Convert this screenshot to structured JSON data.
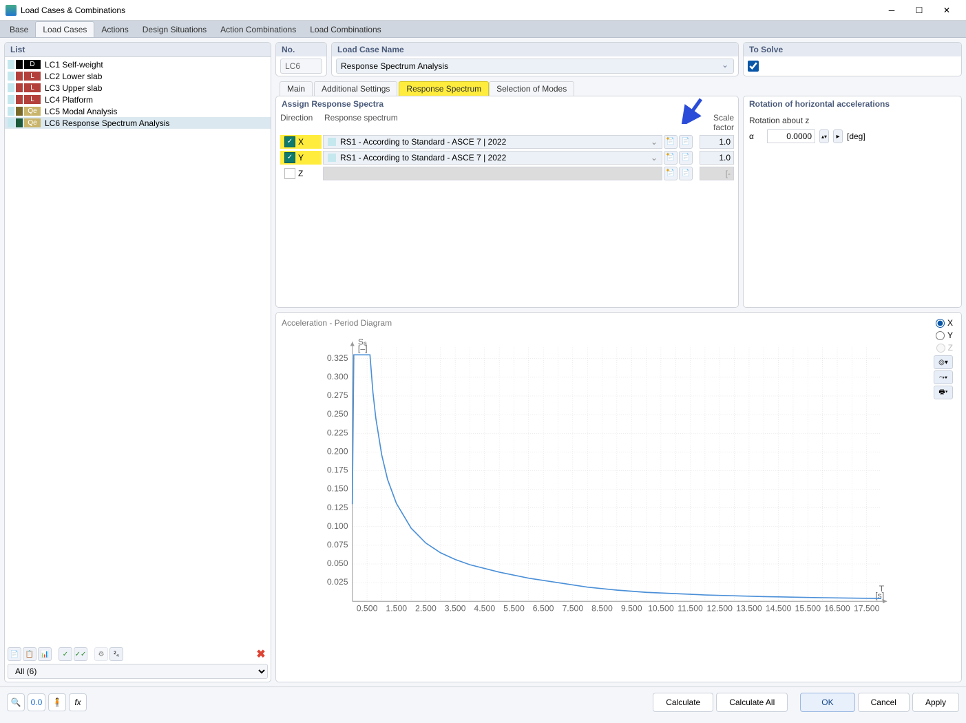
{
  "window": {
    "title": "Load Cases & Combinations"
  },
  "toptabs": [
    "Base",
    "Load Cases",
    "Actions",
    "Design Situations",
    "Action Combinations",
    "Load Combinations"
  ],
  "toptab_active": 1,
  "list": {
    "header": "List",
    "items": [
      {
        "badge2": "#000000",
        "badge3_bg": "#000000",
        "badge3": "D",
        "label": "LC1 Self-weight"
      },
      {
        "badge2": "#b3403a",
        "badge3_bg": "#b3403a",
        "badge3": "L",
        "label": "LC2 Lower slab"
      },
      {
        "badge2": "#b3403a",
        "badge3_bg": "#b3403a",
        "badge3": "L",
        "label": "LC3 Upper slab"
      },
      {
        "badge2": "#b3403a",
        "badge3_bg": "#b3403a",
        "badge3": "L",
        "label": "LC4 Platform"
      },
      {
        "badge2": "#7a6a2a",
        "badge3_bg": "#c8b46a",
        "badge3": "Qe",
        "label": "LC5 Modal Analysis"
      },
      {
        "badge2": "#1a5a3a",
        "badge3_bg": "#c8b46a",
        "badge3": "Qe",
        "label": "LC6 Response Spectrum Analysis",
        "selected": true
      }
    ],
    "filter": "All (6)"
  },
  "fields": {
    "no_label": "No.",
    "no_value": "LC6",
    "name_label": "Load Case Name",
    "name_value": "Response Spectrum Analysis",
    "solve_label": "To Solve",
    "solve_checked": true
  },
  "subtabs": [
    "Main",
    "Additional Settings",
    "Response Spectrum",
    "Selection of Modes"
  ],
  "subtab_active": 2,
  "assign": {
    "title": "Assign Response Spectra",
    "cols": {
      "dir": "Direction",
      "spec": "Response spectrum",
      "scale": "Scale factor"
    },
    "rows": [
      {
        "checked": true,
        "dir": "X",
        "highlight": true,
        "spectrum": "RS1 - According to Standard - ASCE 7 | 2022",
        "scale": "1.0"
      },
      {
        "checked": true,
        "dir": "Y",
        "highlight": true,
        "spectrum": "RS1 - According to Standard - ASCE 7 | 2022",
        "scale": "1.0"
      },
      {
        "checked": false,
        "dir": "Z",
        "highlight": false,
        "spectrum": "",
        "scale": "[-"
      }
    ]
  },
  "rotation": {
    "title": "Rotation of horizontal accelerations",
    "label": "Rotation about z",
    "alpha": "α",
    "value": "0.0000",
    "unit": "[deg]"
  },
  "chart": {
    "title": "Acceleration - Period Diagram",
    "y_label": "Sₐ",
    "y_unit": "[–]",
    "x_label": "T",
    "x_unit": "[s]",
    "x_ticks": [
      "0.500",
      "1.500",
      "2.500",
      "3.500",
      "4.500",
      "5.500",
      "6.500",
      "7.500",
      "8.500",
      "9.500",
      "10.500",
      "11.500",
      "12.500",
      "13.500",
      "14.500",
      "15.500",
      "16.500",
      "17.500"
    ],
    "y_ticks": [
      "0.025",
      "0.050",
      "0.075",
      "0.100",
      "0.125",
      "0.150",
      "0.175",
      "0.200",
      "0.225",
      "0.250",
      "0.275",
      "0.300",
      "0.325"
    ],
    "x_min": 0,
    "x_max": 18,
    "y_min": 0,
    "y_max": 0.34,
    "line_color": "#4a8fd8",
    "grid_color": "#d8d8d8",
    "axis_color": "#999999",
    "curve": [
      [
        0.0,
        0.13
      ],
      [
        0.05,
        0.33
      ],
      [
        0.11,
        0.33
      ],
      [
        0.6,
        0.33
      ],
      [
        0.7,
        0.28
      ],
      [
        0.8,
        0.245
      ],
      [
        1.0,
        0.196
      ],
      [
        1.2,
        0.163
      ],
      [
        1.5,
        0.131
      ],
      [
        2.0,
        0.098
      ],
      [
        2.5,
        0.078
      ],
      [
        3.0,
        0.065
      ],
      [
        3.5,
        0.056
      ],
      [
        4.0,
        0.049
      ],
      [
        5.0,
        0.039
      ],
      [
        6.0,
        0.031
      ],
      [
        7.0,
        0.025
      ],
      [
        8.0,
        0.019
      ],
      [
        9.0,
        0.015
      ],
      [
        10.0,
        0.012
      ],
      [
        12.0,
        0.0085
      ],
      [
        14.0,
        0.0063
      ],
      [
        16.0,
        0.0048
      ],
      [
        18.0,
        0.0038
      ]
    ],
    "radios": [
      {
        "label": "X",
        "selected": true,
        "enabled": true
      },
      {
        "label": "Y",
        "selected": false,
        "enabled": true
      },
      {
        "label": "Z",
        "selected": false,
        "enabled": false
      }
    ]
  },
  "bottom": {
    "calculate": "Calculate",
    "calculate_all": "Calculate All",
    "ok": "OK",
    "cancel": "Cancel",
    "apply": "Apply"
  }
}
